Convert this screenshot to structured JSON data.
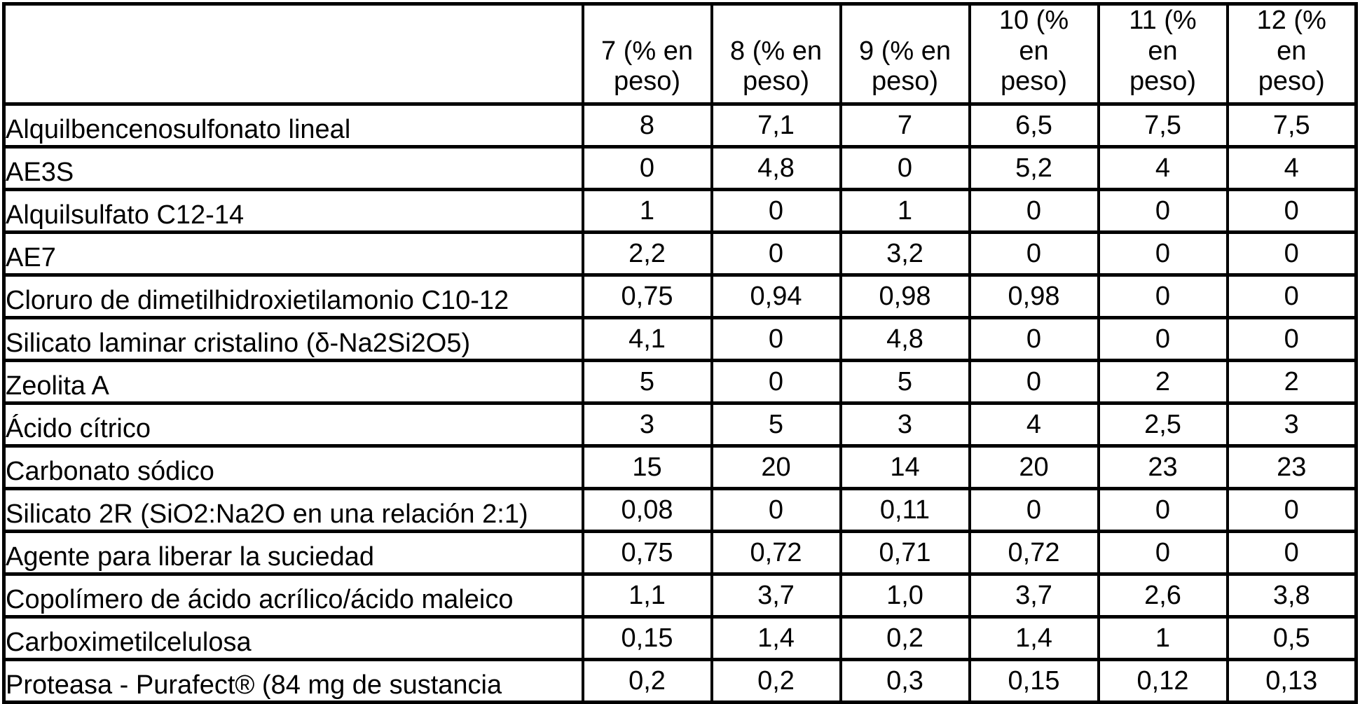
{
  "colors": {
    "border": "#000000",
    "text": "#000000",
    "background": "#ffffff"
  },
  "table": {
    "corner_label": "",
    "columns": [
      "7 (% en\npeso)",
      "8 (% en\npeso)",
      "9 (% en\npeso)",
      "10 (%\nen\npeso)",
      "11 (%\nen\npeso)",
      "12 (%\nen\npeso)"
    ],
    "rows": [
      {
        "label": "Alquilbencenosulfonato lineal",
        "values": [
          "8",
          "7,1",
          "7",
          "6,5",
          "7,5",
          "7,5"
        ]
      },
      {
        "label": "AE3S",
        "values": [
          "0",
          "4,8",
          "0",
          "5,2",
          "4",
          "4"
        ]
      },
      {
        "label": "Alquilsulfato C12-14",
        "values": [
          "1",
          "0",
          "1",
          "0",
          "0",
          "0"
        ]
      },
      {
        "label": "AE7",
        "values": [
          "2,2",
          "0",
          "3,2",
          "0",
          "0",
          "0"
        ]
      },
      {
        "label": "Cloruro de dimetilhidroxietilamonio C10-12",
        "values": [
          "0,75",
          "0,94",
          "0,98",
          "0,98",
          "0",
          "0"
        ]
      },
      {
        "label": "Silicato laminar cristalino (δ-Na2Si2O5)",
        "values": [
          "4,1",
          "0",
          "4,8",
          "0",
          "0",
          "0"
        ]
      },
      {
        "label": "Zeolita A",
        "values": [
          "5",
          "0",
          "5",
          "0",
          "2",
          "2"
        ]
      },
      {
        "label": "Ácido cítrico",
        "values": [
          "3",
          "5",
          "3",
          "4",
          "2,5",
          "3"
        ]
      },
      {
        "label": "Carbonato sódico",
        "values": [
          "15",
          "20",
          "14",
          "20",
          "23",
          "23"
        ]
      },
      {
        "label": "Silicato 2R (SiO2:Na2O en una relación 2:1)",
        "values": [
          "0,08",
          "0",
          "0,11",
          "0",
          "0",
          "0"
        ]
      },
      {
        "label": "Agente para liberar la suciedad",
        "values": [
          "0,75",
          "0,72",
          "0,71",
          "0,72",
          "0",
          "0"
        ]
      },
      {
        "label": "Copolímero de ácido acrílico/ácido maleico",
        "values": [
          "1,1",
          "3,7",
          "1,0",
          "3,7",
          "2,6",
          "3,8"
        ]
      },
      {
        "label": "Carboximetilcelulosa",
        "values": [
          "0,15",
          "1,4",
          "0,2",
          "1,4",
          "1",
          "0,5"
        ]
      },
      {
        "label": "Proteasa - Purafect® (84 mg de sustancia",
        "values": [
          "0,2",
          "0,2",
          "0,3",
          "0,15",
          "0,12",
          "0,13"
        ]
      }
    ]
  }
}
